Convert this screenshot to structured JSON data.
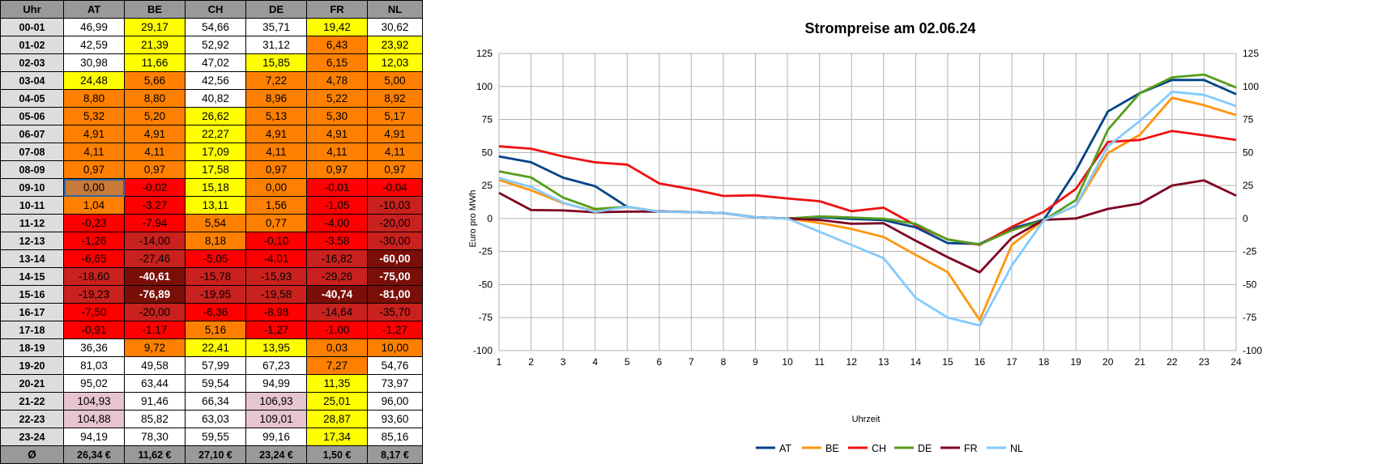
{
  "table": {
    "corner": "Uhr",
    "columns": [
      "AT",
      "BE",
      "CH",
      "DE",
      "FR",
      "NL"
    ],
    "rows": [
      {
        "hour": "00-01",
        "values": [
          "46,99",
          "29,17",
          "54,66",
          "35,71",
          "19,42",
          "30,62"
        ]
      },
      {
        "hour": "01-02",
        "values": [
          "42,59",
          "21,39",
          "52,92",
          "31,12",
          "6,43",
          "23,92"
        ]
      },
      {
        "hour": "02-03",
        "values": [
          "30,98",
          "11,66",
          "47,02",
          "15,85",
          "6,15",
          "12,03"
        ]
      },
      {
        "hour": "03-04",
        "values": [
          "24,48",
          "5,66",
          "42,56",
          "7,22",
          "4,78",
          "5,00"
        ]
      },
      {
        "hour": "04-05",
        "values": [
          "8,80",
          "8,80",
          "40,82",
          "8,96",
          "5,22",
          "8,92"
        ]
      },
      {
        "hour": "05-06",
        "values": [
          "5,32",
          "5,20",
          "26,62",
          "5,13",
          "5,30",
          "5,17"
        ]
      },
      {
        "hour": "06-07",
        "values": [
          "4,91",
          "4,91",
          "22,27",
          "4,91",
          "4,91",
          "4,91"
        ]
      },
      {
        "hour": "07-08",
        "values": [
          "4,11",
          "4,11",
          "17,09",
          "4,11",
          "4,11",
          "4,11"
        ]
      },
      {
        "hour": "08-09",
        "values": [
          "0,97",
          "0,97",
          "17,58",
          "0,97",
          "0,97",
          "0,97"
        ]
      },
      {
        "hour": "09-10",
        "values": [
          "0,00",
          "-0,02",
          "15,18",
          "0,00",
          "-0,01",
          "-0,04"
        ]
      },
      {
        "hour": "10-11",
        "values": [
          "1,04",
          "-3,27",
          "13,11",
          "1,56",
          "-1,05",
          "-10,03"
        ]
      },
      {
        "hour": "11-12",
        "values": [
          "-0,23",
          "-7,94",
          "5,54",
          "0,77",
          "-4,00",
          "-20,00"
        ]
      },
      {
        "hour": "12-13",
        "values": [
          "-1,26",
          "-14,00",
          "8,18",
          "-0,10",
          "-3,58",
          "-30,00"
        ]
      },
      {
        "hour": "13-14",
        "values": [
          "-6,65",
          "-27,46",
          "-5,05",
          "-4,01",
          "-16,82",
          "-60,00"
        ]
      },
      {
        "hour": "14-15",
        "values": [
          "-18,60",
          "-40,61",
          "-15,78",
          "-15,93",
          "-29,26",
          "-75,00"
        ]
      },
      {
        "hour": "15-16",
        "values": [
          "-19,23",
          "-76,89",
          "-19,95",
          "-19,58",
          "-40,74",
          "-81,00"
        ]
      },
      {
        "hour": "16-17",
        "values": [
          "-7,50",
          "-20,00",
          "-6,36",
          "-8,98",
          "-14,64",
          "-35,70"
        ]
      },
      {
        "hour": "17-18",
        "values": [
          "-0,91",
          "-1,17",
          "5,16",
          "-1,27",
          "-1,00",
          "-1,27"
        ]
      },
      {
        "hour": "18-19",
        "values": [
          "36,36",
          "9,72",
          "22,41",
          "13,95",
          "0,03",
          "10,00"
        ]
      },
      {
        "hour": "19-20",
        "values": [
          "81,03",
          "49,58",
          "57,99",
          "67,23",
          "7,27",
          "54,76"
        ]
      },
      {
        "hour": "20-21",
        "values": [
          "95,02",
          "63,44",
          "59,54",
          "94,99",
          "11,35",
          "73,97"
        ]
      },
      {
        "hour": "21-22",
        "values": [
          "104,93",
          "91,46",
          "66,34",
          "106,93",
          "25,01",
          "96,00"
        ]
      },
      {
        "hour": "22-23",
        "values": [
          "104,88",
          "85,82",
          "63,03",
          "109,01",
          "28,87",
          "93,60"
        ]
      },
      {
        "hour": "23-24",
        "values": [
          "94,19",
          "78,30",
          "59,55",
          "99,16",
          "17,34",
          "85,16"
        ]
      }
    ],
    "avg_label": "Ø",
    "averages": [
      "26,34 €",
      "11,62 €",
      "27,10 €",
      "23,24 €",
      "1,50 €",
      "8,17 €"
    ],
    "fill_colors": {
      "white": "#ffffff",
      "yellow": "#ffff00",
      "orange": "#ff8000",
      "red": "#ff0000",
      "dark_red": "#c9211e",
      "maroon": "#7b0f08",
      "pink": "#e6c5cf",
      "header_gray": "#999999",
      "hour_gray": "#dddddd"
    }
  },
  "chart_data": {
    "type": "line",
    "title": "Strompreise am 02.06.24",
    "xlabel": "Uhrzeit",
    "ylabel": "Euro pro MWh",
    "ylim": [
      -100,
      125
    ],
    "yticks": [
      "125",
      "100",
      "75",
      "50",
      "25",
      "0",
      "-25",
      "-50",
      "-75",
      "-100"
    ],
    "x": [
      1,
      2,
      3,
      4,
      5,
      6,
      7,
      8,
      9,
      10,
      11,
      12,
      13,
      14,
      15,
      16,
      17,
      18,
      19,
      20,
      21,
      22,
      23,
      24
    ],
    "grid": true,
    "legend": "bottom",
    "series": [
      {
        "name": "AT",
        "color": "#004586",
        "values": [
          46.99,
          42.59,
          30.98,
          24.48,
          8.8,
          5.32,
          4.91,
          4.11,
          0.97,
          0.0,
          1.04,
          -0.23,
          -1.26,
          -6.65,
          -18.6,
          -19.23,
          -7.5,
          -0.91,
          36.36,
          81.03,
          95.02,
          104.93,
          104.88,
          94.19
        ]
      },
      {
        "name": "BE",
        "color": "#ff950e",
        "values": [
          29.17,
          21.39,
          11.66,
          5.66,
          8.8,
          5.2,
          4.91,
          4.11,
          0.97,
          -0.02,
          -3.27,
          -7.94,
          -14.0,
          -27.46,
          -40.61,
          -76.89,
          -20.0,
          -1.17,
          9.72,
          49.58,
          63.44,
          91.46,
          85.82,
          78.3
        ]
      },
      {
        "name": "CH",
        "color": "#ee1111",
        "values": [
          54.66,
          52.92,
          47.02,
          42.56,
          40.82,
          26.62,
          22.27,
          17.09,
          17.58,
          15.18,
          13.11,
          5.54,
          8.18,
          -5.05,
          -15.78,
          -19.95,
          -6.36,
          5.16,
          22.41,
          57.99,
          59.54,
          66.34,
          63.03,
          59.55
        ]
      },
      {
        "name": "DE",
        "color": "#579d1c",
        "values": [
          35.71,
          31.12,
          15.85,
          7.22,
          8.96,
          5.13,
          4.91,
          4.11,
          0.97,
          0.0,
          1.56,
          0.77,
          -0.1,
          -4.01,
          -15.93,
          -19.58,
          -8.98,
          -1.27,
          13.95,
          67.23,
          94.99,
          106.93,
          109.01,
          99.16
        ]
      },
      {
        "name": "FR",
        "color": "#7e0021",
        "values": [
          19.42,
          6.43,
          6.15,
          4.78,
          5.22,
          5.3,
          4.91,
          4.11,
          0.97,
          -0.01,
          -1.05,
          -4.0,
          -3.58,
          -16.82,
          -29.26,
          -40.74,
          -14.64,
          -1.0,
          0.03,
          7.27,
          11.35,
          25.01,
          28.87,
          17.34
        ]
      },
      {
        "name": "NL",
        "color": "#83caff",
        "values": [
          30.62,
          23.92,
          12.03,
          5.0,
          8.92,
          5.17,
          4.91,
          4.11,
          0.97,
          -0.04,
          -10.03,
          -20.0,
          -30.0,
          -60.0,
          -75.0,
          -81.0,
          -35.7,
          -1.27,
          10.0,
          54.76,
          73.97,
          96.0,
          93.6,
          85.16
        ]
      }
    ]
  }
}
